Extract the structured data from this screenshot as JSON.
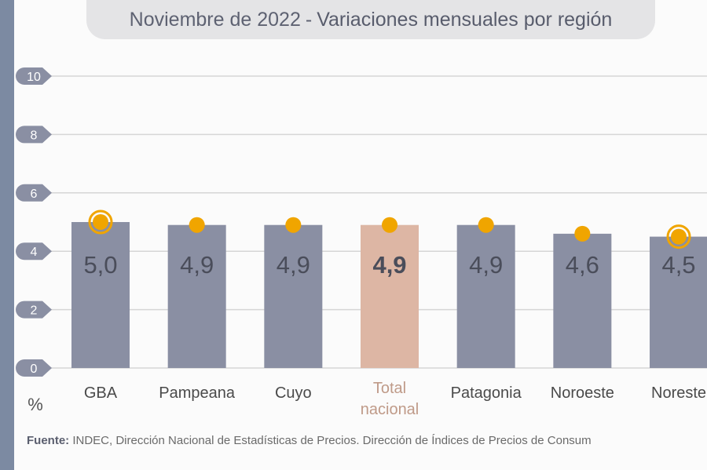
{
  "header": {
    "title_prefix": "Noviembre de 2022",
    "title_separator": "-",
    "title_main": "Variaciones mensuales por región"
  },
  "chart_data": {
    "type": "bar",
    "title": "Noviembre de 2022 - Variaciones mensuales por región",
    "ylabel": "%",
    "ylim": [
      0,
      10
    ],
    "yticks": [
      "0",
      "2",
      "4",
      "6",
      "8",
      "10"
    ],
    "grid": true,
    "categories": [
      "GBA",
      "Pampeana",
      "Cuyo",
      "Total nacional",
      "Patagonia",
      "Noroeste",
      "Noreste"
    ],
    "category_labels": [
      [
        "GBA"
      ],
      [
        "Pampeana"
      ],
      [
        "Cuyo"
      ],
      [
        "Total",
        "nacional"
      ],
      [
        "Patagonia"
      ],
      [
        "Noroeste"
      ],
      [
        "Noreste"
      ]
    ],
    "values": [
      5.0,
      4.9,
      4.9,
      4.9,
      4.9,
      4.6,
      4.5
    ],
    "value_labels": [
      "5,0",
      "4,9",
      "4,9",
      "4,9",
      "4,9",
      "4,6",
      "4,5"
    ],
    "highlight_index": 3,
    "ringed_markers": [
      0,
      6
    ],
    "colors": {
      "bar": "#8a8fa3",
      "bar_highlight": "#ddb6a4",
      "marker": "#f0a500",
      "tick_badge": "#8a8fa3",
      "grid": "#d6d6d6",
      "value_label": "#4a4d5a",
      "category_label": "#4a4a4a",
      "highlight_label": "#bf9a88"
    }
  },
  "footer": {
    "source_label": "Fuente:",
    "source_text": "INDEC, Dirección Nacional de Estadísticas de Precios. Dirección de Índices de Precios de Consum"
  }
}
